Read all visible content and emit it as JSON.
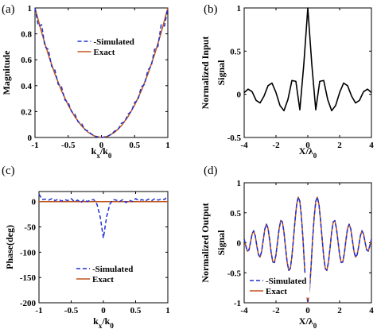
{
  "chart_data": [
    {
      "panel_label": "(a)",
      "type": "line",
      "xlabel": "k",
      "xlabel_sub1": "x",
      "xlabel_sep": "/k",
      "xlabel_sub2": "0",
      "ylabel": "Magnitude",
      "xlim": [
        -1,
        1
      ],
      "ylim": [
        0,
        1
      ],
      "xticks": [
        -1,
        -0.5,
        0,
        0.5,
        1
      ],
      "xtick_labels": [
        "-1",
        "-0.5",
        "0",
        "0.5",
        "1"
      ],
      "yticks": [
        0,
        0.2,
        0.4,
        0.6,
        0.8,
        1
      ],
      "ytick_labels": [
        "0",
        "0.2",
        "0.4",
        "0.6",
        "0.8",
        "1"
      ],
      "legend": "top-center",
      "series": [
        {
          "name": "Simulated",
          "style": "dashed",
          "color": "#1f2fd0",
          "x": [
            -1,
            -0.95,
            -0.9,
            -0.85,
            -0.8,
            -0.75,
            -0.7,
            -0.65,
            -0.6,
            -0.55,
            -0.5,
            -0.45,
            -0.4,
            -0.35,
            -0.3,
            -0.25,
            -0.2,
            -0.15,
            -0.1,
            -0.05,
            0,
            0.05,
            0.1,
            0.15,
            0.2,
            0.25,
            0.3,
            0.35,
            0.4,
            0.45,
            0.5,
            0.55,
            0.6,
            0.65,
            0.7,
            0.75,
            0.8,
            0.85,
            0.9,
            0.95,
            1
          ],
          "y": [
            1,
            0.86,
            0.87,
            0.7,
            0.68,
            0.55,
            0.52,
            0.41,
            0.39,
            0.29,
            0.27,
            0.2,
            0.18,
            0.12,
            0.11,
            0.06,
            0.05,
            0.025,
            0.012,
            0.003,
            0,
            0.003,
            0.012,
            0.025,
            0.05,
            0.06,
            0.11,
            0.12,
            0.18,
            0.2,
            0.27,
            0.29,
            0.39,
            0.41,
            0.52,
            0.55,
            0.68,
            0.7,
            0.87,
            0.86,
            1
          ]
        },
        {
          "name": "Exact",
          "style": "solid",
          "color": "#c0541a",
          "x": [
            -1,
            -0.9,
            -0.8,
            -0.7,
            -0.6,
            -0.5,
            -0.4,
            -0.3,
            -0.2,
            -0.1,
            0,
            0.1,
            0.2,
            0.3,
            0.4,
            0.5,
            0.6,
            0.7,
            0.8,
            0.9,
            1
          ],
          "y": [
            1,
            0.81,
            0.64,
            0.49,
            0.36,
            0.25,
            0.16,
            0.09,
            0.04,
            0.01,
            0,
            0.01,
            0.04,
            0.09,
            0.16,
            0.25,
            0.36,
            0.49,
            0.64,
            0.81,
            1
          ]
        }
      ]
    },
    {
      "panel_label": "(b)",
      "type": "line",
      "xlabel": "X/λ",
      "xlabel_sub2": "0",
      "ylabel": "Normalized Input",
      "ylabel2": "Signal",
      "xlim": [
        -4,
        4
      ],
      "ylim": [
        -0.5,
        1
      ],
      "xticks": [
        -4,
        -2,
        0,
        2,
        4
      ],
      "xtick_labels": [
        "-4",
        "-2",
        "0",
        "2",
        "4"
      ],
      "yticks": [
        -0.5,
        0,
        0.5,
        1
      ],
      "ytick_labels": [
        "-0.5",
        "0",
        "0.5",
        "1"
      ],
      "series": [
        {
          "style": "solid",
          "color": "#000000",
          "x": [
            -4,
            -3.75,
            -3.5,
            -3.25,
            -3,
            -2.75,
            -2.5,
            -2.25,
            -2,
            -1.75,
            -1.5,
            -1.25,
            -1,
            -0.75,
            -0.5,
            -0.25,
            0,
            0.25,
            0.5,
            0.75,
            1,
            1.25,
            1.5,
            1.75,
            2,
            2.25,
            2.5,
            2.75,
            3,
            3.25,
            3.5,
            3.75,
            4
          ],
          "y": [
            0.02,
            0.06,
            0.03,
            -0.07,
            -0.1,
            -0.02,
            0.1,
            0.13,
            0.02,
            -0.13,
            -0.19,
            -0.06,
            0.16,
            0.15,
            -0.18,
            0.35,
            1,
            0.35,
            -0.18,
            0.15,
            0.16,
            -0.06,
            -0.19,
            -0.13,
            0.02,
            0.13,
            0.1,
            -0.02,
            -0.1,
            -0.07,
            0.03,
            0.06,
            0.02
          ]
        }
      ]
    },
    {
      "panel_label": "(c)",
      "type": "line",
      "xlabel": "k",
      "xlabel_sub1": "x",
      "xlabel_sep": "/k",
      "xlabel_sub2": "0",
      "ylabel": "Phase(deg)",
      "xlim": [
        -1,
        1
      ],
      "ylim": [
        -200,
        20
      ],
      "xticks": [
        -1,
        -0.5,
        0,
        0.5,
        1
      ],
      "xtick_labels": [
        "-1",
        "-0.5",
        "0",
        "0.5",
        "1"
      ],
      "yticks": [
        -200,
        -150,
        -100,
        -50,
        0
      ],
      "ytick_labels": [
        "-200",
        "-150",
        "-100",
        "-50",
        "0"
      ],
      "legend": "bottom-center",
      "series": [
        {
          "name": "Simulated",
          "style": "dashed",
          "color": "#1f2fd0",
          "x": [
            -1,
            -0.95,
            -0.9,
            -0.85,
            -0.8,
            -0.75,
            -0.7,
            -0.65,
            -0.6,
            -0.55,
            -0.5,
            -0.45,
            -0.4,
            -0.35,
            -0.3,
            -0.25,
            -0.2,
            -0.15,
            -0.1,
            -0.05,
            0,
            0.05,
            0.1,
            0.15,
            0.2,
            0.25,
            0.3,
            0.35,
            0.4,
            0.45,
            0.5,
            0.55,
            0.6,
            0.65,
            0.7,
            0.75,
            0.8,
            0.85,
            0.9,
            0.95,
            1
          ],
          "y": [
            15,
            4,
            5,
            3,
            6,
            2,
            5,
            1,
            4,
            2,
            6,
            0,
            3,
            -2,
            4,
            0,
            3,
            4,
            -5,
            -30,
            -72,
            -30,
            -5,
            4,
            3,
            0,
            4,
            -2,
            3,
            0,
            6,
            2,
            4,
            1,
            5,
            2,
            6,
            3,
            5,
            4,
            12
          ]
        },
        {
          "name": "Exact",
          "style": "solid",
          "color": "#c0541a",
          "x": [
            -1,
            1
          ],
          "y": [
            0,
            0
          ]
        }
      ]
    },
    {
      "panel_label": "(d)",
      "type": "line",
      "xlabel": "X/λ",
      "xlabel_sub2": "0",
      "ylabel": "Normalized Output",
      "ylabel2": "Signal",
      "xlim": [
        -4,
        4
      ],
      "ylim": [
        -1,
        1
      ],
      "xticks": [
        -4,
        -2,
        0,
        2,
        4
      ],
      "xtick_labels": [
        "-4",
        "-2",
        "0",
        "2",
        "4"
      ],
      "yticks": [
        -1,
        -0.5,
        0,
        0.5,
        1
      ],
      "ytick_labels": [
        "-1",
        "-0.5",
        "0",
        "0.5",
        "1"
      ],
      "legend": "bottom-left",
      "series": [
        {
          "name": "Simulated",
          "style": "dashed",
          "color": "#1f2fd0",
          "x": [
            -4,
            -3.9,
            -3.8,
            -3.7,
            -3.6,
            -3.5,
            -3.4,
            -3.3,
            -3.2,
            -3.1,
            -3,
            -2.9,
            -2.8,
            -2.7,
            -2.6,
            -2.5,
            -2.4,
            -2.3,
            -2.2,
            -2.1,
            -2,
            -1.9,
            -1.8,
            -1.7,
            -1.6,
            -1.5,
            -1.4,
            -1.3,
            -1.2,
            -1.1,
            -1,
            -0.9,
            -0.8,
            -0.7,
            -0.6,
            -0.5,
            -0.4,
            -0.3,
            -0.2,
            -0.1,
            0,
            0.1,
            0.2,
            0.3,
            0.4,
            0.5,
            0.6,
            0.7,
            0.8,
            0.9,
            1,
            1.1,
            1.2,
            1.3,
            1.4,
            1.5,
            1.6,
            1.7,
            1.8,
            1.9,
            2,
            2.1,
            2.2,
            2.3,
            2.4,
            2.5,
            2.6,
            2.7,
            2.8,
            2.9,
            3,
            3.1,
            3.2,
            3.3,
            3.4,
            3.5,
            3.6,
            3.7,
            3.8,
            3.9,
            4
          ],
          "y": [
            0.06,
            -0.05,
            -0.14,
            -0.12,
            0.01,
            0.15,
            0.2,
            0.11,
            -0.06,
            -0.2,
            -0.24,
            -0.14,
            0.05,
            0.23,
            0.31,
            0.24,
            0.05,
            -0.17,
            -0.32,
            -0.33,
            -0.2,
            0.02,
            0.24,
            0.37,
            0.35,
            0.18,
            -0.08,
            -0.32,
            -0.46,
            -0.43,
            -0.23,
            0.07,
            0.38,
            0.64,
            0.76,
            0.69,
            0.43,
            0.05,
            -0.42,
            -0.82,
            -0.98,
            -0.82,
            -0.42,
            0.05,
            0.43,
            0.69,
            0.76,
            0.64,
            0.38,
            0.07,
            -0.23,
            -0.43,
            -0.46,
            -0.32,
            -0.08,
            0.18,
            0.35,
            0.37,
            0.24,
            0.02,
            -0.2,
            -0.33,
            -0.32,
            -0.17,
            0.05,
            0.24,
            0.31,
            0.23,
            0.05,
            -0.14,
            -0.24,
            -0.2,
            -0.06,
            0.11,
            0.2,
            0.15,
            0.01,
            -0.12,
            -0.14,
            -0.05,
            0.06
          ]
        },
        {
          "name": "Exact",
          "style": "solid",
          "color": "#c0541a",
          "x": [
            -4,
            -3.9,
            -3.8,
            -3.7,
            -3.6,
            -3.5,
            -3.4,
            -3.3,
            -3.2,
            -3.1,
            -3,
            -2.9,
            -2.8,
            -2.7,
            -2.6,
            -2.5,
            -2.4,
            -2.3,
            -2.2,
            -2.1,
            -2,
            -1.9,
            -1.8,
            -1.7,
            -1.6,
            -1.5,
            -1.4,
            -1.3,
            -1.2,
            -1.1,
            -1,
            -0.9,
            -0.8,
            -0.7,
            -0.6,
            -0.5,
            -0.4,
            -0.3,
            -0.2,
            -0.1,
            0,
            0.1,
            0.2,
            0.3,
            0.4,
            0.5,
            0.6,
            0.7,
            0.8,
            0.9,
            1,
            1.1,
            1.2,
            1.3,
            1.4,
            1.5,
            1.6,
            1.7,
            1.8,
            1.9,
            2,
            2.1,
            2.2,
            2.3,
            2.4,
            2.5,
            2.6,
            2.7,
            2.8,
            2.9,
            3,
            3.1,
            3.2,
            3.3,
            3.4,
            3.5,
            3.6,
            3.7,
            3.8,
            3.9,
            4
          ],
          "y": [
            0.06,
            -0.05,
            -0.14,
            -0.12,
            0.01,
            0.15,
            0.2,
            0.11,
            -0.06,
            -0.2,
            -0.24,
            -0.14,
            0.05,
            0.23,
            0.31,
            0.24,
            0.05,
            -0.17,
            -0.32,
            -0.33,
            -0.2,
            0.02,
            0.24,
            0.37,
            0.35,
            0.18,
            -0.08,
            -0.32,
            -0.46,
            -0.43,
            -0.23,
            0.07,
            0.38,
            0.64,
            0.76,
            0.69,
            0.43,
            0.05,
            -0.42,
            -0.82,
            -1,
            -0.82,
            -0.42,
            0.05,
            0.43,
            0.69,
            0.76,
            0.64,
            0.38,
            0.07,
            -0.23,
            -0.43,
            -0.46,
            -0.32,
            -0.08,
            0.18,
            0.35,
            0.37,
            0.24,
            0.02,
            -0.2,
            -0.33,
            -0.32,
            -0.17,
            0.05,
            0.24,
            0.31,
            0.23,
            0.05,
            -0.14,
            -0.24,
            -0.2,
            -0.06,
            0.11,
            0.2,
            0.15,
            0.01,
            -0.12,
            -0.14,
            -0.05,
            0.06
          ]
        }
      ]
    }
  ]
}
